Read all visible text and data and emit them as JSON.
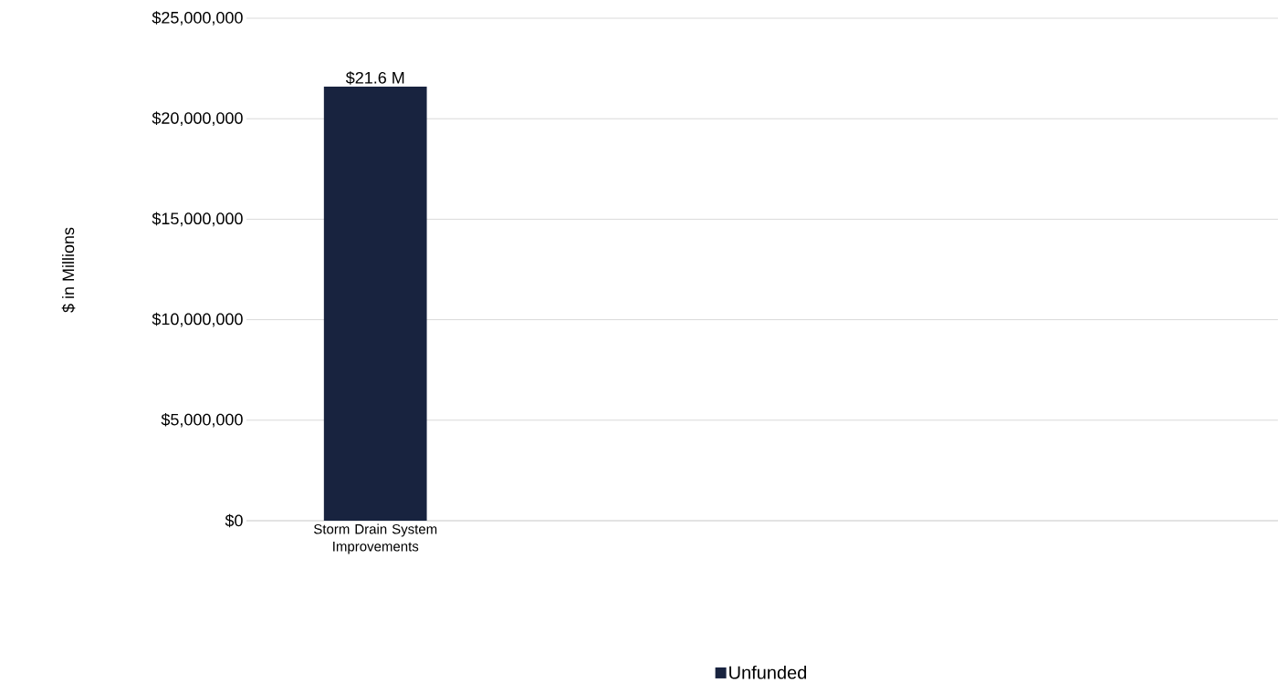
{
  "chart_data": {
    "type": "bar",
    "ylabel": "$ in Millions",
    "categories": [
      "Storm Drain System Improvements",
      null,
      null,
      null
    ],
    "series": [
      {
        "name": "Unfunded",
        "color": "#18233f",
        "values": [
          21600000,
          null,
          null,
          null
        ],
        "value_labels": [
          "$21.6 M",
          null,
          null,
          null
        ]
      }
    ],
    "ylim": [
      0,
      25000000
    ],
    "yticks": [
      {
        "value": 0,
        "label": "$0"
      },
      {
        "value": 5000000,
        "label": "$5,000,000"
      },
      {
        "value": 10000000,
        "label": "$10,000,000"
      },
      {
        "value": 15000000,
        "label": "$15,000,000"
      },
      {
        "value": 20000000,
        "label": "$20,000,000"
      },
      {
        "value": 25000000,
        "label": "$25,000,000"
      }
    ],
    "grid": "y",
    "legend": "bottom"
  }
}
